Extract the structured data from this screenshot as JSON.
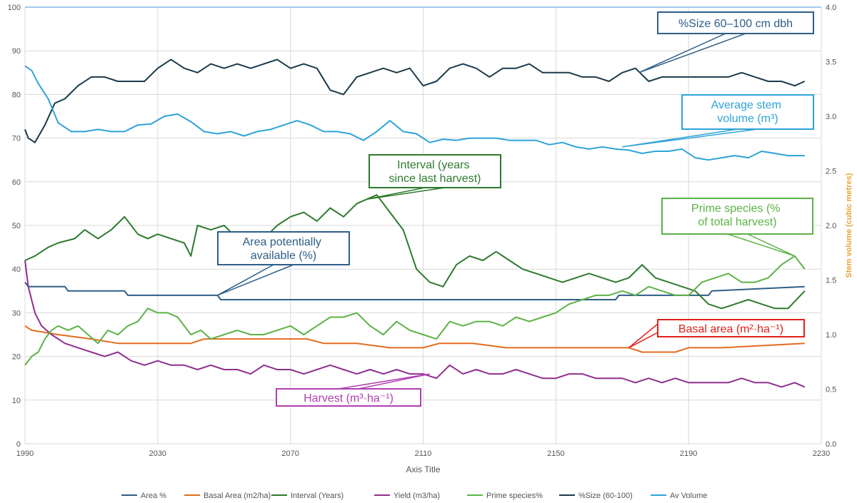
{
  "chart_data": {
    "type": "line",
    "xlabel": "Axis Title",
    "ylabel": "",
    "y2label": "Stem volume (cubic metres)",
    "xlim": [
      1990,
      2230
    ],
    "ylim": [
      0,
      100
    ],
    "y2lim": [
      0,
      4.0
    ],
    "x_ticks": [
      1990,
      2030,
      2070,
      2110,
      2150,
      2190,
      2230
    ],
    "y_ticks": [
      0,
      10,
      20,
      30,
      40,
      50,
      60,
      70,
      80,
      90,
      100
    ],
    "y2_ticks": [
      "0.0",
      "0.5",
      "1.0",
      "1.5",
      "2.0",
      "2.5",
      "3.0",
      "3.5",
      "4.0"
    ],
    "grid": true,
    "legend_position": "bottom",
    "series": [
      {
        "name": "Area %",
        "axis": "left",
        "color": "#2e5e88",
        "x": [
          1990,
          1991,
          2002,
          2003,
          2020,
          2021,
          2048,
          2049,
          2168,
          2169,
          2196,
          2197,
          2225
        ],
        "y": [
          37,
          36,
          36,
          35,
          35,
          34,
          34,
          33,
          33,
          34,
          34,
          35,
          36
        ]
      },
      {
        "name": "Basal Area (m2/ha)",
        "axis": "left",
        "color": "#e46c1f",
        "x": [
          1990,
          1992,
          2000,
          2010,
          2018,
          2030,
          2040,
          2044,
          2048,
          2060,
          2075,
          2080,
          2090,
          2100,
          2110,
          2115,
          2125,
          2135,
          2145,
          2160,
          2172,
          2176,
          2180,
          2186,
          2190,
          2200,
          2225
        ],
        "y": [
          27,
          26,
          25,
          24,
          23,
          23,
          23,
          24,
          24,
          24,
          24,
          23,
          23,
          22,
          22,
          23,
          23,
          22,
          22,
          22,
          22,
          21,
          21,
          21,
          22,
          22,
          23
        ]
      },
      {
        "name": "Interval (Years)",
        "axis": "left",
        "color": "#2e7a2e",
        "x": [
          1990,
          1993,
          1997,
          2000,
          2005,
          2008,
          2012,
          2016,
          2020,
          2024,
          2027,
          2030,
          2034,
          2038,
          2040,
          2042,
          2046,
          2050,
          2054,
          2058,
          2062,
          2066,
          2070,
          2074,
          2078,
          2082,
          2086,
          2090,
          2093,
          2096,
          2100,
          2104,
          2108,
          2112,
          2116,
          2120,
          2124,
          2128,
          2132,
          2136,
          2140,
          2144,
          2148,
          2152,
          2156,
          2160,
          2164,
          2168,
          2172,
          2176,
          2180,
          2184,
          2188,
          2192,
          2196,
          2200,
          2204,
          2208,
          2212,
          2216,
          2220,
          2225
        ],
        "y": [
          42,
          43,
          45,
          46,
          47,
          49,
          47,
          49,
          52,
          48,
          47,
          48,
          47,
          46,
          43,
          50,
          49,
          50,
          47,
          48,
          47,
          50,
          52,
          53,
          51,
          54,
          52,
          55,
          56,
          57,
          53,
          49,
          40,
          37,
          36,
          41,
          43,
          42,
          44,
          42,
          40,
          39,
          38,
          37,
          38,
          39,
          38,
          37,
          38,
          41,
          38,
          37,
          36,
          35,
          32,
          31,
          32,
          33,
          32,
          31,
          31,
          35
        ]
      },
      {
        "name": "Yield (m3/ha)",
        "axis": "left",
        "color": "#8e2f8e",
        "x": [
          1990,
          1991,
          1993,
          1995,
          1998,
          2002,
          2006,
          2010,
          2014,
          2018,
          2022,
          2026,
          2030,
          2034,
          2038,
          2042,
          2046,
          2050,
          2054,
          2058,
          2062,
          2066,
          2070,
          2074,
          2078,
          2082,
          2086,
          2090,
          2094,
          2098,
          2102,
          2106,
          2110,
          2114,
          2118,
          2122,
          2126,
          2130,
          2134,
          2138,
          2142,
          2146,
          2150,
          2154,
          2158,
          2162,
          2166,
          2170,
          2174,
          2178,
          2182,
          2186,
          2190,
          2194,
          2198,
          2202,
          2206,
          2210,
          2214,
          2218,
          2222,
          2225
        ],
        "y": [
          42,
          36,
          30,
          27,
          25,
          23,
          22,
          21,
          20,
          21,
          19,
          18,
          19,
          18,
          18,
          17,
          18,
          17,
          17,
          16,
          18,
          17,
          17,
          16,
          17,
          18,
          17,
          16,
          17,
          16,
          17,
          16,
          16,
          15,
          18,
          16,
          17,
          16,
          16,
          17,
          16,
          15,
          15,
          16,
          16,
          15,
          15,
          15,
          14,
          15,
          14,
          15,
          14,
          14,
          14,
          14,
          15,
          14,
          14,
          13,
          14,
          13
        ]
      },
      {
        "name": "Prime species%",
        "axis": "left",
        "color": "#5cb246",
        "x": [
          1990,
          1992,
          1994,
          1996,
          1998,
          2000,
          2003,
          2006,
          2009,
          2012,
          2015,
          2018,
          2021,
          2024,
          2027,
          2030,
          2033,
          2036,
          2040,
          2043,
          2046,
          2050,
          2054,
          2058,
          2062,
          2066,
          2070,
          2074,
          2078,
          2082,
          2086,
          2090,
          2094,
          2098,
          2102,
          2106,
          2110,
          2114,
          2118,
          2122,
          2126,
          2130,
          2134,
          2138,
          2142,
          2146,
          2150,
          2154,
          2158,
          2162,
          2166,
          2170,
          2174,
          2178,
          2182,
          2186,
          2190,
          2194,
          2198,
          2202,
          2206,
          2210,
          2214,
          2218,
          2222,
          2225
        ],
        "y": [
          18,
          20,
          21,
          24,
          26,
          27,
          26,
          27,
          25,
          23,
          26,
          25,
          27,
          28,
          31,
          30,
          30,
          29,
          25,
          26,
          24,
          25,
          26,
          25,
          25,
          26,
          27,
          25,
          27,
          29,
          29,
          30,
          27,
          25,
          28,
          26,
          25,
          24,
          28,
          27,
          28,
          28,
          27,
          29,
          28,
          29,
          30,
          32,
          33,
          34,
          34,
          35,
          34,
          36,
          35,
          34,
          34,
          37,
          38,
          39,
          37,
          37,
          38,
          41,
          43,
          40
        ]
      },
      {
        "name": "%Size (60-100)",
        "axis": "left",
        "color": "#1b3a4b",
        "x": [
          1990,
          1991,
          1993,
          1996,
          1999,
          2002,
          2006,
          2010,
          2014,
          2018,
          2022,
          2026,
          2030,
          2034,
          2038,
          2042,
          2046,
          2050,
          2054,
          2058,
          2062,
          2066,
          2070,
          2074,
          2078,
          2082,
          2086,
          2090,
          2094,
          2098,
          2102,
          2106,
          2110,
          2114,
          2118,
          2122,
          2126,
          2130,
          2134,
          2138,
          2142,
          2146,
          2150,
          2154,
          2158,
          2162,
          2166,
          2170,
          2174,
          2178,
          2182,
          2186,
          2190,
          2194,
          2198,
          2202,
          2206,
          2210,
          2214,
          2218,
          2222,
          2225
        ],
        "y": [
          72,
          70,
          69,
          73,
          78,
          79,
          82,
          84,
          84,
          83,
          83,
          83,
          86,
          88,
          86,
          85,
          87,
          86,
          87,
          86,
          87,
          88,
          86,
          87,
          86,
          81,
          80,
          84,
          85,
          86,
          85,
          86,
          82,
          83,
          86,
          87,
          86,
          84,
          86,
          86,
          87,
          85,
          85,
          85,
          84,
          84,
          83,
          85,
          86,
          83,
          84,
          84,
          84,
          84,
          84,
          84,
          85,
          84,
          83,
          83,
          82,
          83
        ]
      },
      {
        "name": "Av Volume",
        "axis": "right",
        "color": "#2ea3d8",
        "x": [
          1990,
          1992,
          1994,
          1997,
          2000,
          2004,
          2008,
          2012,
          2016,
          2020,
          2024,
          2028,
          2032,
          2036,
          2040,
          2044,
          2048,
          2052,
          2056,
          2060,
          2064,
          2068,
          2072,
          2076,
          2080,
          2084,
          2088,
          2092,
          2096,
          2100,
          2104,
          2108,
          2112,
          2116,
          2120,
          2124,
          2128,
          2132,
          2136,
          2140,
          2144,
          2148,
          2152,
          2156,
          2160,
          2164,
          2168,
          2172,
          2176,
          2180,
          2184,
          2188,
          2192,
          2196,
          2200,
          2204,
          2208,
          2212,
          2216,
          2220,
          2225
        ],
        "y": [
          3.46,
          3.42,
          3.3,
          3.16,
          2.94,
          2.86,
          2.86,
          2.88,
          2.86,
          2.86,
          2.92,
          2.93,
          3.0,
          3.02,
          2.95,
          2.86,
          2.84,
          2.86,
          2.82,
          2.86,
          2.88,
          2.92,
          2.96,
          2.92,
          2.86,
          2.86,
          2.84,
          2.78,
          2.86,
          2.96,
          2.86,
          2.84,
          2.76,
          2.79,
          2.78,
          2.8,
          2.8,
          2.8,
          2.78,
          2.78,
          2.78,
          2.74,
          2.76,
          2.72,
          2.7,
          2.72,
          2.7,
          2.69,
          2.66,
          2.68,
          2.68,
          2.7,
          2.62,
          2.6,
          2.62,
          2.64,
          2.62,
          2.68,
          2.66,
          2.64,
          2.64
        ]
      }
    ],
    "annotations": [
      {
        "name": "size-callout",
        "text": "%Size 60–100 cm dbh",
        "x": 2175,
        "y": 85,
        "color": "#2e5e88"
      },
      {
        "name": "avg-volume-callout",
        "text": "Average stem volume (m³)",
        "x": 2170,
        "y": 68,
        "color": "#2ea3d8"
      },
      {
        "name": "interval-callout",
        "text": "Interval (years since last harvest)",
        "x": 2093,
        "y": 56,
        "color": "#2e7a2e"
      },
      {
        "name": "prime-callout",
        "text": "Prime species (% of total harvest)",
        "x": 2222,
        "y": 43,
        "color": "#5cb246"
      },
      {
        "name": "area-callout",
        "text": "Area potentially available (%)",
        "x": 2048,
        "y": 34,
        "color": "#2e5e88"
      },
      {
        "name": "basal-callout",
        "text": "Basal area (m²·ha⁻¹)",
        "x": 2172,
        "y": 22,
        "color": "#e0201c"
      },
      {
        "name": "harvest-callout",
        "text": "Harvest (m³·ha⁻¹)",
        "x": 2112,
        "y": 16,
        "color": "#b03fb0"
      }
    ]
  }
}
